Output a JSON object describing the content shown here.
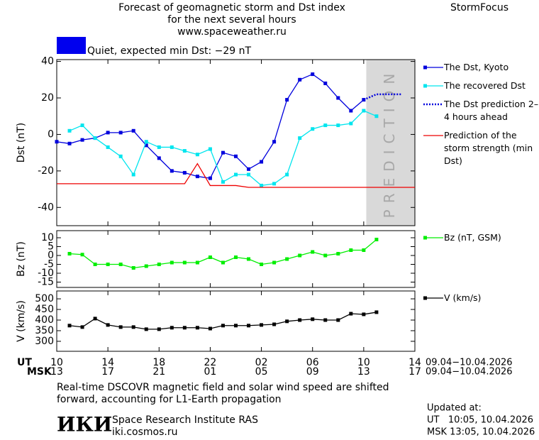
{
  "header": {
    "title": "Forecast of geomagnetic storm and Dst index",
    "subtitle": "for the next several hours",
    "url": "www.spaceweather.ru",
    "brand": "StormFocus"
  },
  "status": {
    "text": "Quiet, expected min Dst: −29 nT",
    "color": "#0000ee"
  },
  "chart_data": [
    {
      "type": "line",
      "ylabel": "Dst (nT)",
      "xlim": [
        0,
        28
      ],
      "ylim": [
        -50,
        41
      ],
      "yticks": [
        -40,
        -20,
        0,
        20,
        40
      ],
      "prediction_zone": {
        "xlim": [
          24.2,
          28
        ],
        "label": "PREDICTION",
        "color": "#d9d9d9"
      },
      "series": [
        {
          "name": "The Dst, Kyoto",
          "color": "#0000dd",
          "markers": true,
          "dash": "solid",
          "x": [
            0,
            1,
            2,
            3,
            4,
            5,
            6,
            7,
            8,
            9,
            10,
            11,
            12,
            13,
            14,
            15,
            16,
            17,
            18,
            19,
            20,
            21,
            22,
            23,
            24
          ],
          "values": [
            -4,
            -5,
            -3,
            -2,
            1,
            1,
            2,
            -6,
            -13,
            -20,
            -21,
            -23,
            -24,
            -10,
            -12,
            -19,
            -15,
            -4,
            19,
            30,
            33,
            28,
            20,
            13,
            19
          ]
        },
        {
          "name": "The recovered Dst",
          "color": "#00e5ee",
          "markers": true,
          "dash": "solid",
          "x": [
            1,
            2,
            3,
            4,
            5,
            6,
            7,
            8,
            9,
            10,
            11,
            12,
            13,
            14,
            15,
            16,
            17,
            18,
            19,
            20,
            21,
            22,
            23,
            24,
            25
          ],
          "values": [
            2,
            5,
            -2,
            -7,
            -12,
            -22,
            -4,
            -7,
            -7,
            -9,
            -11,
            -8,
            -26,
            -22,
            -22,
            -28,
            -27,
            -22,
            -2,
            3,
            5,
            5,
            6,
            13,
            10
          ]
        },
        {
          "name": "The Dst prediction 2–4 hours ahead",
          "color": "#0000dd",
          "markers": false,
          "dash": "dotted",
          "x": [
            24,
            25,
            27
          ],
          "values": [
            19,
            22,
            22
          ]
        },
        {
          "name": "Prediction of the storm strength (min Dst)",
          "color": "#ee0000",
          "markers": false,
          "dash": "solid",
          "x": [
            0,
            10,
            11,
            12,
            14,
            15,
            28
          ],
          "values": [
            -27,
            -27,
            -16,
            -28,
            -28,
            -29,
            -29
          ]
        }
      ]
    },
    {
      "type": "line",
      "ylabel": "Bz (nT)",
      "xlim": [
        0,
        28
      ],
      "ylim": [
        -18,
        14
      ],
      "yticks": [
        10,
        5,
        0,
        -5,
        -10,
        -15
      ],
      "series": [
        {
          "name": "Bz (nT, GSM)",
          "color": "#00ee00",
          "markers": true,
          "dash": "solid",
          "x": [
            1,
            2,
            3,
            4,
            5,
            6,
            7,
            8,
            9,
            10,
            11,
            12,
            13,
            14,
            15,
            16,
            17,
            18,
            19,
            20,
            21,
            22,
            23,
            24,
            25
          ],
          "values": [
            1,
            0.5,
            -5,
            -5,
            -5,
            -7,
            -6,
            -5,
            -4,
            -4,
            -4,
            -1,
            -4,
            -1,
            -2,
            -5,
            -4,
            -2,
            0,
            2,
            0,
            1,
            3,
            3,
            9
          ]
        }
      ]
    },
    {
      "type": "line",
      "ylabel": "V (km/s)",
      "xlim": [
        0,
        28
      ],
      "ylim": [
        253,
        537
      ],
      "yticks": [
        300,
        350,
        400,
        450,
        500
      ],
      "xlabel": "UT",
      "xlabel_msk": "MSK",
      "date_range": "09.04−10.04.2026",
      "xticks": [
        {
          "value": 0,
          "label": "10"
        },
        {
          "value": 4,
          "label": "14"
        },
        {
          "value": 8,
          "label": "18"
        },
        {
          "value": 12,
          "label": "22"
        },
        {
          "value": 16,
          "label": "02"
        },
        {
          "value": 20,
          "label": "06"
        },
        {
          "value": 24,
          "label": "10"
        },
        {
          "value": 28,
          "label": "14"
        }
      ],
      "xticks_msk": [
        {
          "value": 0,
          "label": "13"
        },
        {
          "value": 4,
          "label": "17"
        },
        {
          "value": 8,
          "label": "21"
        },
        {
          "value": 12,
          "label": "01"
        },
        {
          "value": 16,
          "label": "05"
        },
        {
          "value": 20,
          "label": "09"
        },
        {
          "value": 24,
          "label": "13"
        },
        {
          "value": 28,
          "label": "17"
        }
      ],
      "series": [
        {
          "name": "V (km/s)",
          "color": "#000000",
          "markers": true,
          "dash": "solid",
          "x": [
            1,
            2,
            3,
            4,
            5,
            6,
            7,
            8,
            9,
            10,
            11,
            12,
            13,
            14,
            15,
            16,
            17,
            18,
            19,
            20,
            21,
            22,
            23,
            24,
            25
          ],
          "values": [
            374,
            367,
            407,
            377,
            367,
            367,
            357,
            357,
            364,
            364,
            364,
            360,
            374,
            374,
            374,
            377,
            380,
            394,
            400,
            404,
            400,
            400,
            430,
            427,
            437
          ]
        }
      ]
    }
  ],
  "footer": {
    "note": "Real-time DSCOVR magnetic field and solar wind speed are shifted forward, accounting for L1-Earth propagation",
    "logo": "ИКИ",
    "institute": "Space Research Institute RAS",
    "institute_url": "iki.cosmos.ru",
    "updated": {
      "label": "Updated at:",
      "ut": "UT   10:05, 10.04.2026",
      "msk": "MSK 13:05, 10.04.2026"
    }
  }
}
